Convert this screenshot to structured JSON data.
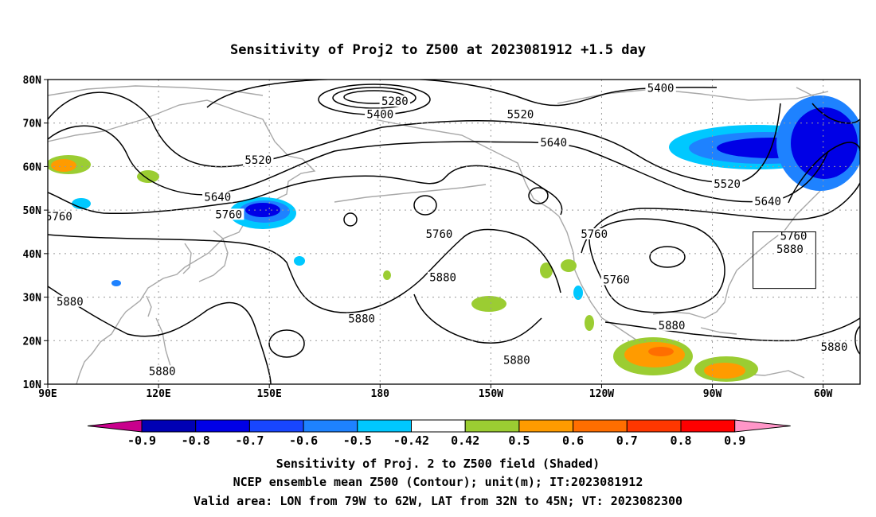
{
  "title": "Sensitivity of Proj2 to Z500 at 2023081912 +1.5 day",
  "map": {
    "lon_range": [
      90,
      310
    ],
    "lat_range": [
      10,
      80
    ],
    "lat_ticks": [
      {
        "lat": 80,
        "label": "80N"
      },
      {
        "lat": 70,
        "label": "70N"
      },
      {
        "lat": 60,
        "label": "60N"
      },
      {
        "lat": 50,
        "label": "50N"
      },
      {
        "lat": 40,
        "label": "40N"
      },
      {
        "lat": 30,
        "label": "30N"
      },
      {
        "lat": 20,
        "label": "20N"
      },
      {
        "lat": 10,
        "label": "10N"
      }
    ],
    "lon_ticks": [
      {
        "lon": 90,
        "label": "90E"
      },
      {
        "lon": 120,
        "label": "120E"
      },
      {
        "lon": 150,
        "label": "150E"
      },
      {
        "lon": 180,
        "label": "180"
      },
      {
        "lon": 210,
        "label": "150W"
      },
      {
        "lon": 240,
        "label": "120W"
      },
      {
        "lon": 270,
        "label": "90W"
      },
      {
        "lon": 300,
        "label": "60W"
      }
    ],
    "grid": "dotted",
    "valid_box": {
      "lon": [
        281,
        298
      ],
      "lat": [
        32,
        45
      ]
    },
    "colors": {
      "contour": "#000000",
      "coast": "#a8a8a8",
      "grid": "#9a9a9a"
    }
  },
  "contour_labels": [
    {
      "text": "5280",
      "lon": 184,
      "lat": 74.5
    },
    {
      "text": "5400",
      "lon": 180,
      "lat": 71.5
    },
    {
      "text": "5400",
      "lon": 256,
      "lat": 77.5
    },
    {
      "text": "5520",
      "lon": 147,
      "lat": 61
    },
    {
      "text": "5520",
      "lon": 218,
      "lat": 71.5
    },
    {
      "text": "5520",
      "lon": 274,
      "lat": 55.5
    },
    {
      "text": "5640",
      "lon": 136,
      "lat": 52.5
    },
    {
      "text": "5640",
      "lon": 227,
      "lat": 65
    },
    {
      "text": "5640",
      "lon": 285,
      "lat": 51.5
    },
    {
      "text": "5760",
      "lon": 139,
      "lat": 48.5
    },
    {
      "text": "5760",
      "lon": 93,
      "lat": 48
    },
    {
      "text": "5760",
      "lon": 196,
      "lat": 44
    },
    {
      "text": "5760",
      "lon": 238,
      "lat": 44
    },
    {
      "text": "5760",
      "lon": 244,
      "lat": 33.5
    },
    {
      "text": "5760",
      "lon": 292,
      "lat": 43.5
    },
    {
      "text": "5880",
      "lon": 197,
      "lat": 34
    },
    {
      "text": "5880",
      "lon": 175,
      "lat": 24.5
    },
    {
      "text": "5880",
      "lon": 259,
      "lat": 23
    },
    {
      "text": "5880",
      "lon": 291,
      "lat": 40.5
    },
    {
      "text": "5880",
      "lon": 217,
      "lat": 15
    },
    {
      "text": "5880",
      "lon": 303,
      "lat": 18
    },
    {
      "text": "5880",
      "lon": 96,
      "lat": 28.5
    },
    {
      "text": "5880",
      "lon": 121,
      "lat": 12.5
    }
  ],
  "colorbar": {
    "levels": [
      "-0.9",
      "-0.8",
      "-0.7",
      "-0.6",
      "-0.5",
      "-0.42",
      "0.42",
      "0.5",
      "0.6",
      "0.7",
      "0.8",
      "0.9"
    ],
    "colors": [
      "#c8008c",
      "#0000b4",
      "#0000e6",
      "#1846ff",
      "#1e82ff",
      "#00c8ff",
      "#ffffff",
      "#9bcd32",
      "#ff9b00",
      "#ff6e00",
      "#ff3700",
      "#ff0000",
      "#ff96c8"
    ]
  },
  "footer": {
    "line1": "Sensitivity of Proj. 2 to Z500 field (Shaded)",
    "line2": "NCEP ensemble mean Z500 (Contour); unit(m); IT:2023081912",
    "line3": "Valid area: LON from 79W to 62W, LAT from 32N to 45N; VT: 2023082300"
  }
}
